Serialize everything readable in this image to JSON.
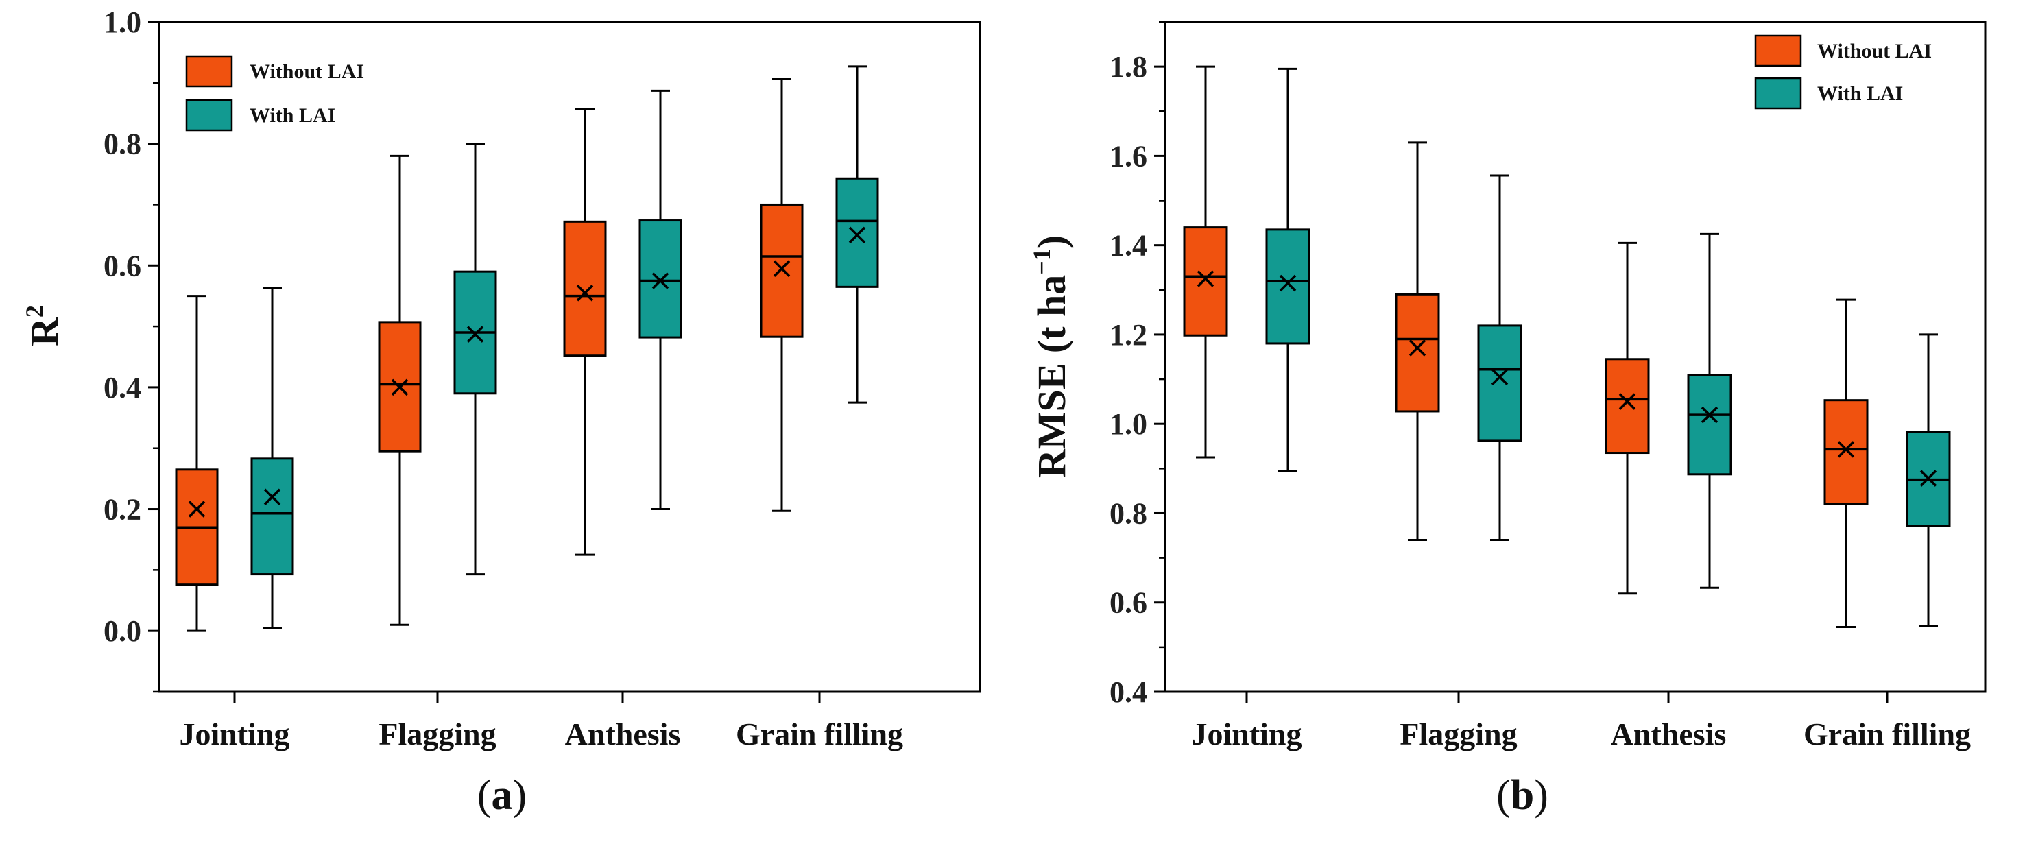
{
  "colors": {
    "without": "#F0520F",
    "with": "#129A91",
    "stroke": "#000000"
  },
  "legend": {
    "without_label": "Without LAI",
    "with_label": "With LAI"
  },
  "chart_data": [
    {
      "type": "box",
      "panel_label": "(a)",
      "panel_letter": "a",
      "ylabel_main": "R",
      "ylabel_sup": "2",
      "ylim": [
        -0.1,
        1.0
      ],
      "yticks": [
        0.0,
        0.2,
        0.4,
        0.6,
        0.8,
        1.0
      ],
      "tick_labels": [
        "0.0",
        "0.2",
        "0.4",
        "0.6",
        "0.8",
        "1.0"
      ],
      "categories": [
        "Jointing",
        "Flagging",
        "Anthesis",
        "Grain filling"
      ],
      "legend_position": "top-left",
      "series": [
        {
          "name": "Without LAI",
          "boxes": [
            {
              "min": 0.0,
              "q1": 0.076,
              "median": 0.17,
              "q3": 0.265,
              "max": 0.55,
              "mean": 0.2
            },
            {
              "min": 0.01,
              "q1": 0.295,
              "median": 0.405,
              "q3": 0.507,
              "max": 0.78,
              "mean": 0.4
            },
            {
              "min": 0.125,
              "q1": 0.452,
              "median": 0.55,
              "q3": 0.672,
              "max": 0.857,
              "mean": 0.555
            },
            {
              "min": 0.197,
              "q1": 0.483,
              "median": 0.615,
              "q3": 0.7,
              "max": 0.906,
              "mean": 0.595
            }
          ]
        },
        {
          "name": "With LAI",
          "boxes": [
            {
              "min": 0.005,
              "q1": 0.093,
              "median": 0.193,
              "q3": 0.283,
              "max": 0.563,
              "mean": 0.22
            },
            {
              "min": 0.093,
              "q1": 0.39,
              "median": 0.49,
              "q3": 0.59,
              "max": 0.8,
              "mean": 0.487
            },
            {
              "min": 0.2,
              "q1": 0.482,
              "median": 0.575,
              "q3": 0.674,
              "max": 0.887,
              "mean": 0.575
            },
            {
              "min": 0.375,
              "q1": 0.565,
              "median": 0.673,
              "q3": 0.743,
              "max": 0.927,
              "mean": 0.65
            }
          ]
        }
      ]
    },
    {
      "type": "box",
      "panel_label": "(b)",
      "panel_letter": "b",
      "ylabel_main": "RMSE (t ha",
      "ylabel_sup": "−1",
      "ylabel_close": ")",
      "ylim": [
        0.4,
        1.9
      ],
      "yticks": [
        0.4,
        0.6,
        0.8,
        1.0,
        1.2,
        1.4,
        1.6,
        1.8
      ],
      "tick_labels": [
        "0.4",
        "0.6",
        "0.8",
        "1.0",
        "1.2",
        "1.4",
        "1.6",
        "1.8"
      ],
      "categories": [
        "Jointing",
        "Flagging",
        "Anthesis",
        "Grain filling"
      ],
      "legend_position": "top-right",
      "series": [
        {
          "name": "Without LAI",
          "boxes": [
            {
              "min": 0.925,
              "q1": 1.198,
              "median": 1.33,
              "q3": 1.44,
              "max": 1.8,
              "mean": 1.325
            },
            {
              "min": 0.74,
              "q1": 1.028,
              "median": 1.19,
              "q3": 1.29,
              "max": 1.63,
              "mean": 1.17
            },
            {
              "min": 0.62,
              "q1": 0.935,
              "median": 1.055,
              "q3": 1.145,
              "max": 1.405,
              "mean": 1.05
            },
            {
              "min": 0.545,
              "q1": 0.82,
              "median": 0.943,
              "q3": 1.053,
              "max": 1.278,
              "mean": 0.943
            }
          ]
        },
        {
          "name": "With LAI",
          "boxes": [
            {
              "min": 0.895,
              "q1": 1.18,
              "median": 1.32,
              "q3": 1.435,
              "max": 1.795,
              "mean": 1.315
            },
            {
              "min": 0.74,
              "q1": 0.962,
              "median": 1.122,
              "q3": 1.22,
              "max": 1.556,
              "mean": 1.105
            },
            {
              "min": 0.633,
              "q1": 0.887,
              "median": 1.02,
              "q3": 1.11,
              "max": 1.425,
              "mean": 1.02
            },
            {
              "min": 0.547,
              "q1": 0.772,
              "median": 0.875,
              "q3": 0.982,
              "max": 1.2,
              "mean": 0.878
            }
          ]
        }
      ]
    }
  ]
}
